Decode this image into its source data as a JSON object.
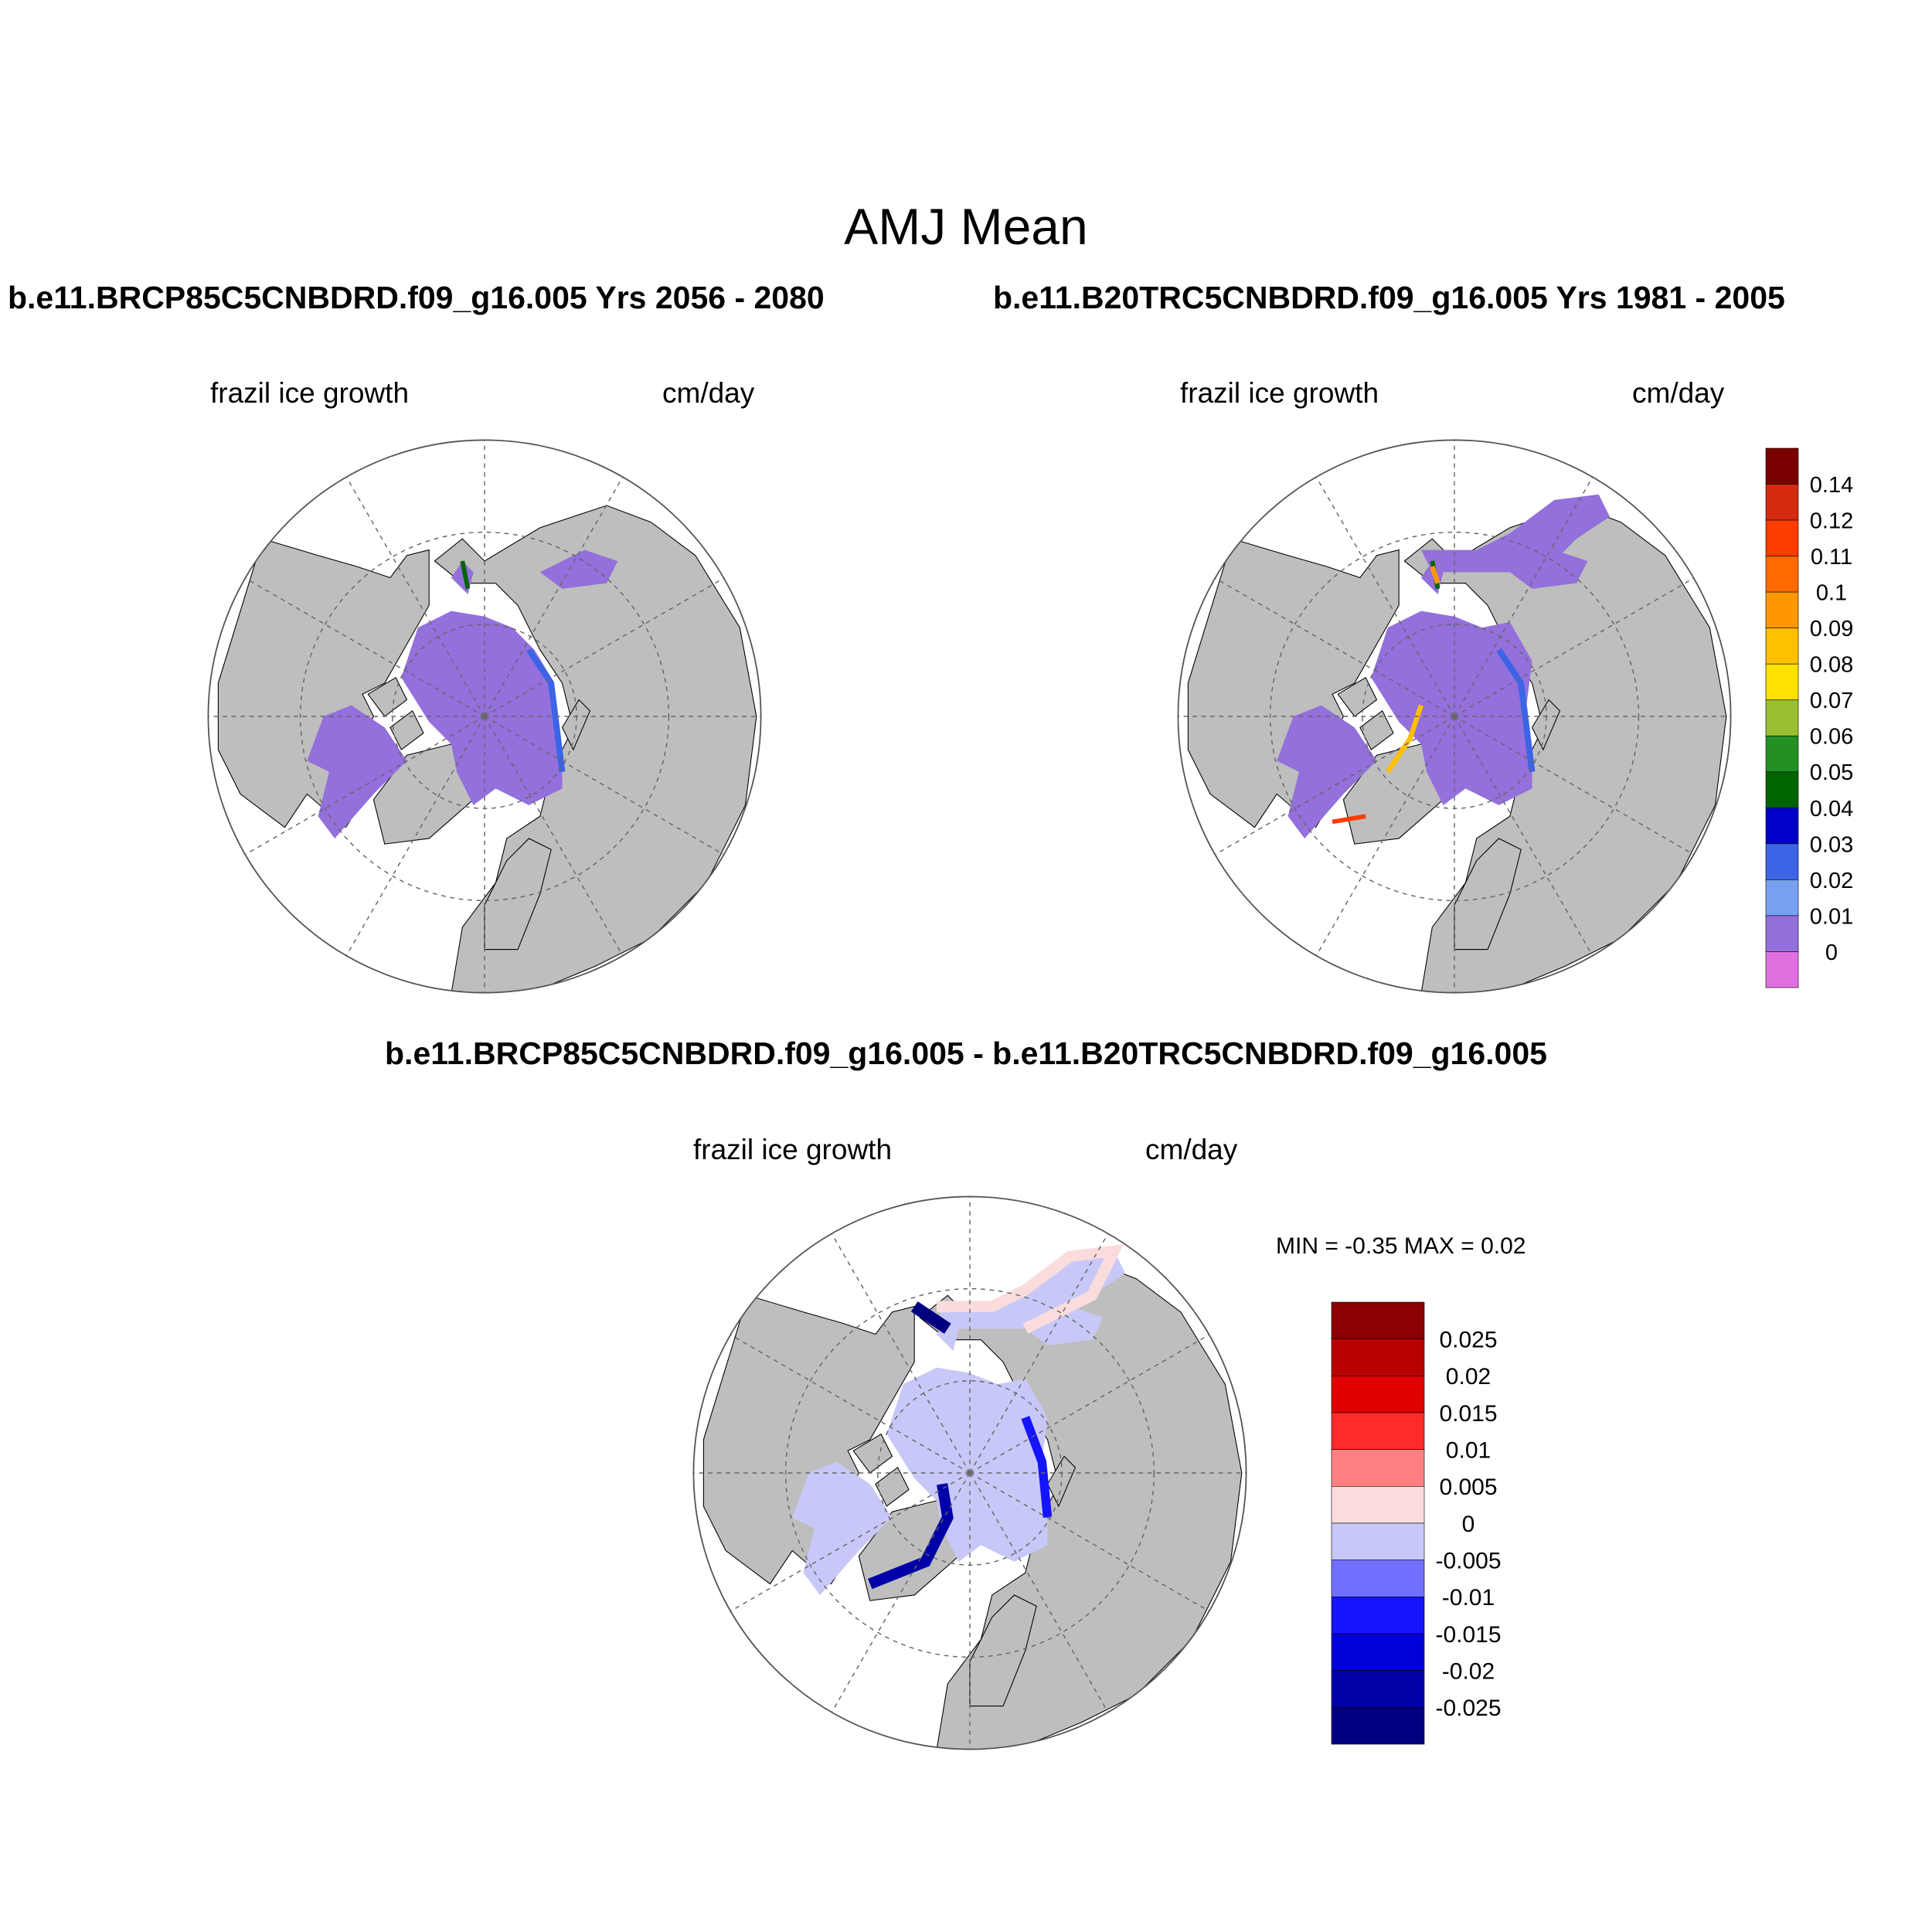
{
  "figure": {
    "title": "AMJ Mean",
    "panels": [
      {
        "title": "b.e11.BRCP85C5CNBDRD.f09_g16.005  Yrs 2056 - 2080",
        "left_label": "frazil ice growth",
        "right_label": "cm/day"
      },
      {
        "title": "b.e11.B20TRC5CNBDRD.f09_g16.005  Yrs 1981 - 2005",
        "left_label": "frazil ice growth",
        "right_label": "cm/day"
      },
      {
        "title": "b.e11.BRCP85C5CNBDRD.f09_g16.005 - b.e11.B20TRC5CNBDRD.f09_g16.005",
        "left_label": "frazil ice growth",
        "right_label": "cm/day",
        "stats": "MIN =  -0.35 MAX =   0.02"
      }
    ]
  },
  "colorbars": {
    "main": {
      "labels": [
        "0.14",
        "0.12",
        "0.11",
        "0.1",
        "0.09",
        "0.08",
        "0.07",
        "0.06",
        "0.05",
        "0.04",
        "0.03",
        "0.02",
        "0.01",
        "0"
      ],
      "colors": [
        "#7a0000",
        "#d42a10",
        "#ff3c00",
        "#ff6a00",
        "#ff9800",
        "#ffc000",
        "#ffe000",
        "#9abf30",
        "#229022",
        "#006400",
        "#0000c8",
        "#3c64e6",
        "#78a0f0",
        "#9370db",
        "#e070e0"
      ]
    },
    "diff": {
      "labels": [
        "0.025",
        "0.02",
        "0.015",
        "0.01",
        "0.005",
        "0",
        "-0.005",
        "-0.01",
        "-0.015",
        "-0.02",
        "-0.025"
      ],
      "colors": [
        "#8b0000",
        "#b80000",
        "#e00000",
        "#ff2a2a",
        "#ff8080",
        "#fbdcdc",
        "#c8c8f8",
        "#7070ff",
        "#1414ff",
        "#0000d8",
        "#0000a8",
        "#000080"
      ]
    }
  },
  "map_colors": {
    "land": "#bebebe",
    "ocean": "#ffffff",
    "ice_main": "#9370db",
    "diff_neutral": "#c8c8f8",
    "diff_strong_neg": "#0000a8",
    "diff_pos": "#fbdcdc"
  }
}
